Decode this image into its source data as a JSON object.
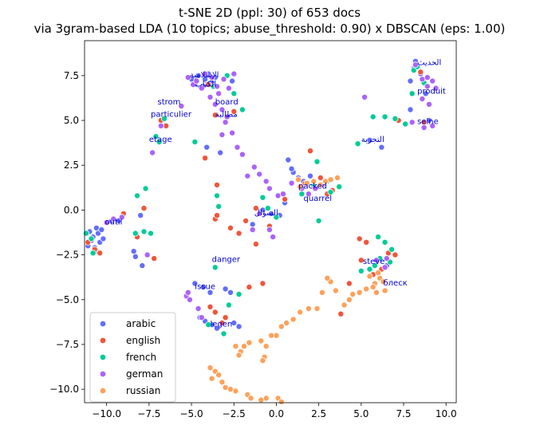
{
  "chart_data": {
    "type": "scatter",
    "title": "t-SNE 2D (ppl: 30) of 653 docs",
    "subtitle": "via 3gram-based LDA (10 topics; abuse_threshold: 0.90) x DBSCAN (eps: 1.00)",
    "xlabel": "",
    "ylabel": "",
    "xlim": [
      -11.3,
      10.6
    ],
    "ylim": [
      -10.75,
      9.45
    ],
    "xticks": [
      -10.0,
      -7.5,
      -5.0,
      -2.5,
      0.0,
      2.5,
      5.0,
      7.5,
      10.0
    ],
    "yticks": [
      -10.0,
      -7.5,
      -5.0,
      -2.5,
      0.0,
      2.5,
      5.0,
      7.5
    ],
    "grid": false,
    "legend_position": "bottom-left",
    "series": [
      {
        "name": "arabic",
        "color": "#636efa",
        "points": [
          [
            -11.0,
            -1.2
          ],
          [
            -10.8,
            -1.5
          ],
          [
            -10.6,
            -1.0
          ],
          [
            -10.4,
            -1.8
          ],
          [
            -10.7,
            -2.1
          ],
          [
            -10.9,
            -1.7
          ],
          [
            -10.5,
            -1.3
          ],
          [
            -10.3,
            -1.1
          ],
          [
            -10.6,
            -2.3
          ],
          [
            -10.2,
            -1.6
          ],
          [
            -11.1,
            -2.0
          ],
          [
            -9.7,
            -0.6
          ],
          [
            -9.3,
            -0.6
          ],
          [
            -8.0,
            -0.3
          ],
          [
            -8.4,
            -2.3
          ],
          [
            -8.3,
            -2.6
          ],
          [
            -7.9,
            -3.1
          ],
          [
            -4.2,
            7.3
          ],
          [
            -4.0,
            7.6
          ],
          [
            -3.8,
            7.1
          ],
          [
            -4.3,
            6.9
          ],
          [
            -3.6,
            7.4
          ],
          [
            -5.0,
            7.3
          ],
          [
            -4.8,
            7.0
          ],
          [
            -4.6,
            7.5
          ],
          [
            -2.6,
            7.2
          ],
          [
            -3.3,
            3.2
          ],
          [
            -4.1,
            3.5
          ],
          [
            -4.3,
            -4.3
          ],
          [
            -3.9,
            -4.6
          ],
          [
            -4.8,
            -4.1
          ],
          [
            -3.0,
            -4.4
          ],
          [
            -2.7,
            -4.6
          ],
          [
            -4.2,
            -6.2
          ],
          [
            -4.5,
            -6.0
          ],
          [
            -3.8,
            -6.4
          ],
          [
            -3.5,
            -6.6
          ],
          [
            -2.5,
            -6.3
          ],
          [
            -2.2,
            -6.5
          ],
          [
            1.0,
            2.1
          ],
          [
            1.3,
            1.8
          ],
          [
            1.6,
            1.6
          ],
          [
            0.7,
            2.8
          ],
          [
            0.9,
            2.3
          ],
          [
            2.0,
            1.9
          ],
          [
            -0.3,
            -0.2
          ],
          [
            0.2,
            -0.3
          ],
          [
            -0.8,
            0.0
          ],
          [
            -1.4,
            -0.8
          ],
          [
            0.5,
            0.4
          ],
          [
            5.5,
            3.9
          ],
          [
            6.2,
            3.5
          ],
          [
            6.5,
            -3.1
          ],
          [
            8.1,
            7.9
          ],
          [
            8.5,
            7.6
          ],
          [
            8.2,
            8.3
          ],
          [
            7.9,
            7.2
          ],
          [
            8.8,
            6.5
          ],
          [
            9.0,
            5.0
          ],
          [
            7.9,
            5.6
          ]
        ]
      },
      {
        "name": "english",
        "color": "#ef553b",
        "points": [
          [
            -11.1,
            -1.8
          ],
          [
            -10.7,
            -2.2
          ],
          [
            -10.4,
            -2.4
          ],
          [
            -8.2,
            -1.5
          ],
          [
            -9.0,
            -0.2
          ],
          [
            -7.8,
            0.1
          ],
          [
            -7.2,
            -2.7
          ],
          [
            -4.2,
            2.9
          ],
          [
            -3.6,
            5.3
          ],
          [
            -4.0,
            7.0
          ],
          [
            -2.5,
            5.5
          ],
          [
            -3.5,
            1.4
          ],
          [
            -3.6,
            -0.5
          ],
          [
            -3.5,
            -0.3
          ],
          [
            -2.7,
            -1.0
          ],
          [
            -2.2,
            -1.3
          ],
          [
            -1.8,
            -0.6
          ],
          [
            -1.2,
            -1.9
          ],
          [
            -0.8,
            -4.1
          ],
          [
            -1.6,
            -4.3
          ],
          [
            -3.9,
            -5.4
          ],
          [
            -3.6,
            -5.7
          ],
          [
            -3.2,
            -6.3
          ],
          [
            -3.0,
            -6.0
          ],
          [
            1.7,
            1.5
          ],
          [
            2.2,
            1.3
          ],
          [
            2.0,
            3.3
          ],
          [
            3.0,
            0.9
          ],
          [
            2.6,
            1.8
          ],
          [
            3.3,
            1.1
          ],
          [
            0.5,
            0.6
          ],
          [
            4.9,
            -1.6
          ],
          [
            5.3,
            -1.8
          ],
          [
            6.6,
            -2.4
          ],
          [
            7.0,
            -2.5
          ],
          [
            3.8,
            -5.8
          ],
          [
            4.3,
            -4.1
          ],
          [
            5.7,
            -3.6
          ],
          [
            6.2,
            -3.3
          ],
          [
            5.0,
            -2.8
          ],
          [
            7.2,
            5.0
          ],
          [
            8.7,
            4.9
          ],
          [
            8.5,
            7.7
          ],
          [
            -6.8,
            5.0
          ],
          [
            -6.5,
            4.7
          ],
          [
            -1.2,
            0.1
          ],
          [
            -0.4,
            -0.9
          ]
        ]
      },
      {
        "name": "french",
        "color": "#00cc96",
        "points": [
          [
            -11.2,
            -1.3
          ],
          [
            -10.9,
            -1.6
          ],
          [
            -10.8,
            -2.4
          ],
          [
            -8.3,
            -1.3
          ],
          [
            -7.8,
            -1.2
          ],
          [
            -7.4,
            -1.3
          ],
          [
            -7.7,
            1.2
          ],
          [
            -8.2,
            0.8
          ],
          [
            -7.1,
            4.1
          ],
          [
            -6.9,
            3.8
          ],
          [
            -6.6,
            5.1
          ],
          [
            -3.7,
            6.9
          ],
          [
            -2.9,
            7.5
          ],
          [
            -2.5,
            6.5
          ],
          [
            -2.0,
            5.6
          ],
          [
            -4.8,
            3.8
          ],
          [
            -3.6,
            -3.2
          ],
          [
            -3.5,
            0.8
          ],
          [
            -3.4,
            0.2
          ],
          [
            -2.2,
            -4.7
          ],
          [
            -2.8,
            -5.3
          ],
          [
            -4.0,
            -6.4
          ],
          [
            -3.1,
            -6.9
          ],
          [
            -0.8,
            0.7
          ],
          [
            -0.5,
            0.1
          ],
          [
            0.0,
            -0.4
          ],
          [
            2.4,
            2.7
          ],
          [
            2.2,
            1.4
          ],
          [
            1.5,
            0.9
          ],
          [
            2.5,
            -0.6
          ],
          [
            3.0,
            1.6
          ],
          [
            3.2,
            1.0
          ],
          [
            3.7,
            1.3
          ],
          [
            5.7,
            5.2
          ],
          [
            6.4,
            5.2
          ],
          [
            7.0,
            5.1
          ],
          [
            7.6,
            4.8
          ],
          [
            8.1,
            7.8
          ],
          [
            8.3,
            8.0
          ],
          [
            8.7,
            7.1
          ],
          [
            8.0,
            6.5
          ],
          [
            6.0,
            -1.5
          ],
          [
            6.4,
            -1.8
          ],
          [
            6.8,
            -2.2
          ],
          [
            6.1,
            -2.7
          ],
          [
            6.7,
            -2.9
          ],
          [
            5.8,
            -3.1
          ],
          [
            5.5,
            -3.3
          ],
          [
            5.0,
            -3.4
          ],
          [
            4.8,
            3.7
          ]
        ]
      },
      {
        "name": "german",
        "color": "#ab63fa",
        "points": [
          [
            -5.2,
            7.4
          ],
          [
            -4.9,
            7.0
          ],
          [
            -4.7,
            7.2
          ],
          [
            -4.4,
            6.8
          ],
          [
            -4.2,
            7.6
          ],
          [
            -3.8,
            7.4
          ],
          [
            -3.5,
            6.9
          ],
          [
            -3.1,
            7.3
          ],
          [
            -2.8,
            6.8
          ],
          [
            -2.5,
            7.6
          ],
          [
            -3.9,
            6.3
          ],
          [
            -3.6,
            5.9
          ],
          [
            -3.2,
            5.6
          ],
          [
            -2.9,
            5.2
          ],
          [
            -3.4,
            6.5
          ],
          [
            -3.0,
            4.9
          ],
          [
            -3.2,
            4.2
          ],
          [
            -2.6,
            4.3
          ],
          [
            -2.3,
            3.5
          ],
          [
            -2.0,
            3.1
          ],
          [
            -5.6,
            5.8
          ],
          [
            -6.8,
            4.7
          ],
          [
            -7.3,
            3.2
          ],
          [
            -9.1,
            -0.4
          ],
          [
            -9.6,
            -0.5
          ],
          [
            -10.0,
            -0.7
          ],
          [
            -7.6,
            -2.5
          ],
          [
            -5.3,
            -4.8
          ],
          [
            -5.1,
            -5.0
          ],
          [
            -4.6,
            -5.5
          ],
          [
            -4.4,
            -6.0
          ],
          [
            -5.2,
            -4.6
          ],
          [
            -1.7,
            1.9
          ],
          [
            -1.3,
            2.4
          ],
          [
            -1.0,
            2.0
          ],
          [
            -0.6,
            1.6
          ],
          [
            -0.4,
            1.2
          ],
          [
            0.1,
            0.8
          ],
          [
            0.4,
            0.9
          ],
          [
            -1.0,
            -0.2
          ],
          [
            -1.4,
            -1.1
          ],
          [
            -0.2,
            -1.5
          ],
          [
            -0.4,
            -1.1
          ],
          [
            1.5,
            1.2
          ],
          [
            1.9,
            0.9
          ],
          [
            2.3,
            1.2
          ],
          [
            2.7,
            1.4
          ],
          [
            0.9,
            1.5
          ],
          [
            8.2,
            8.1
          ],
          [
            8.6,
            7.3
          ],
          [
            8.9,
            7.4
          ],
          [
            9.2,
            7.2
          ],
          [
            9.4,
            6.8
          ],
          [
            8.9,
            6.9
          ],
          [
            8.6,
            6.2
          ],
          [
            9.0,
            5.9
          ],
          [
            9.2,
            4.7
          ],
          [
            8.7,
            4.6
          ],
          [
            8.0,
            4.9
          ],
          [
            5.2,
            6.3
          ],
          [
            5.9,
            -2.8
          ],
          [
            6.4,
            -3.2
          ],
          [
            6.5,
            -2.7
          ]
        ]
      },
      {
        "name": "russian",
        "color": "#fea15a",
        "points": [
          [
            6.1,
            -3.8
          ],
          [
            5.8,
            -4.1
          ],
          [
            6.3,
            -4.0
          ],
          [
            6.4,
            -4.5
          ],
          [
            5.9,
            -4.6
          ],
          [
            5.5,
            -3.7
          ],
          [
            5.7,
            -4.3
          ],
          [
            6.0,
            -3.5
          ],
          [
            5.3,
            -4.4
          ],
          [
            4.9,
            -4.6
          ],
          [
            4.5,
            -4.7
          ],
          [
            4.3,
            -5.0
          ],
          [
            4.0,
            -5.3
          ],
          [
            3.5,
            -4.5
          ],
          [
            3.2,
            -4.0
          ],
          [
            3.0,
            -3.8
          ],
          [
            2.7,
            -4.6
          ],
          [
            2.4,
            -5.5
          ],
          [
            1.9,
            -5.5
          ],
          [
            1.4,
            -5.7
          ],
          [
            1.0,
            -6.1
          ],
          [
            0.6,
            -6.3
          ],
          [
            0.3,
            -6.5
          ],
          [
            0.0,
            -7.0
          ],
          [
            -0.3,
            -7.0
          ],
          [
            -0.9,
            -7.3
          ],
          [
            -1.6,
            -7.4
          ],
          [
            -1.9,
            -7.6
          ],
          [
            -2.4,
            -7.6
          ],
          [
            -2.1,
            -7.9
          ],
          [
            -2.2,
            -8.1
          ],
          [
            -0.6,
            -7.6
          ],
          [
            -0.7,
            -8.2
          ],
          [
            -0.8,
            -8.4
          ],
          [
            -3.9,
            -8.8
          ],
          [
            -3.6,
            -9.0
          ],
          [
            -3.4,
            -9.2
          ],
          [
            -3.8,
            -9.4
          ],
          [
            -3.2,
            -9.6
          ],
          [
            -3.0,
            -9.9
          ],
          [
            -2.7,
            -10.0
          ],
          [
            -2.4,
            -10.1
          ],
          [
            -1.7,
            -10.3
          ],
          [
            -1.5,
            -10.5
          ],
          [
            -0.9,
            -10.6
          ],
          [
            -0.6,
            -10.5
          ],
          [
            0.1,
            -10.5
          ],
          [
            0.3,
            -10.7
          ],
          [
            1.3,
            1.7
          ],
          [
            1.8,
            1.5
          ],
          [
            2.2,
            1.6
          ],
          [
            2.6,
            1.4
          ],
          [
            2.9,
            1.6
          ],
          [
            3.2,
            1.7
          ],
          [
            3.6,
            1.8
          ],
          [
            1.4,
            1.3
          ]
        ]
      }
    ],
    "annotations": [
      {
        "text": "الحديث",
        "x": 8.3,
        "y": 8.1
      },
      {
        "text": "produit",
        "x": 8.3,
        "y": 6.5
      },
      {
        "text": "seine",
        "x": 8.3,
        "y": 4.8
      },
      {
        "text": "التجربة",
        "x": 5.0,
        "y": 3.8
      },
      {
        "text": "الإسلامية",
        "x": -5.1,
        "y": 7.4
      },
      {
        "text": "الكتاب",
        "x": -4.8,
        "y": 6.9
      },
      {
        "text": "strom",
        "x": -7.0,
        "y": 5.9
      },
      {
        "text": "board",
        "x": -3.6,
        "y": 5.9
      },
      {
        "text": "particulier",
        "x": -7.4,
        "y": 5.2
      },
      {
        "text": "مطالبة",
        "x": -3.6,
        "y": 5.2
      },
      {
        "text": "etage",
        "x": -7.5,
        "y": 3.8
      },
      {
        "text": "packed",
        "x": 1.3,
        "y": 1.2
      },
      {
        "text": "quarrel",
        "x": 1.6,
        "y": 0.5
      },
      {
        "text": "السؤال",
        "x": -1.3,
        "y": -0.3
      },
      {
        "text": "outil",
        "x": -10.1,
        "y": -0.8
      },
      {
        "text": "danger",
        "x": -3.8,
        "y": -2.9
      },
      {
        "text": "steve",
        "x": 5.1,
        "y": -3.0
      },
      {
        "text": "issue",
        "x": -4.8,
        "y": -4.4
      },
      {
        "text": "блеск",
        "x": 6.3,
        "y": -4.2
      },
      {
        "text": "legen",
        "x": -3.9,
        "y": -6.5
      }
    ]
  }
}
